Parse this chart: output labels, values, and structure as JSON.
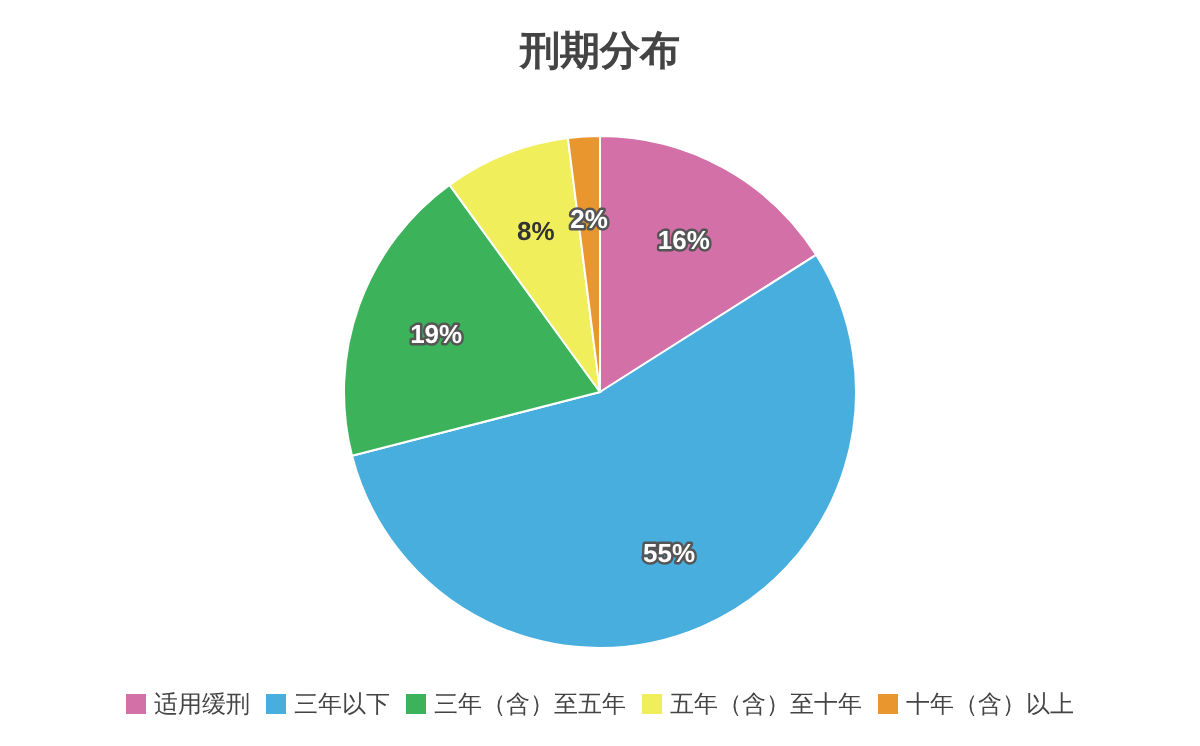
{
  "chart_data": {
    "type": "pie",
    "title": "刑期分布",
    "categories": [
      "适用缓刑",
      "三年以下",
      "三年（含）至五年",
      "五年（含）至十年",
      "十年（含）以上"
    ],
    "values": [
      16,
      55,
      19,
      8,
      2
    ],
    "colors": [
      "#d370a8",
      "#48aede",
      "#3cb25b",
      "#f1ee5c",
      "#e9962f"
    ],
    "value_labels": [
      "16%",
      "55%",
      "19%",
      "8%",
      "2%"
    ],
    "legend": "bottom"
  }
}
